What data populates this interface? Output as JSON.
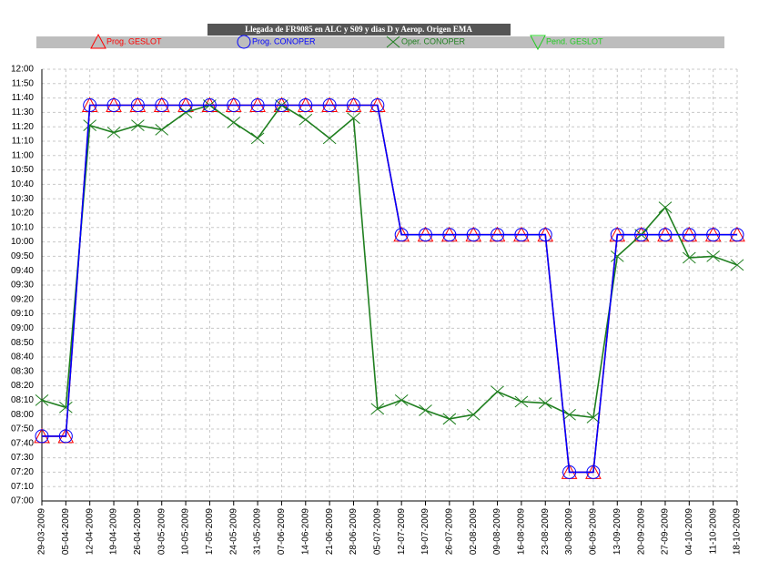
{
  "chart_data": {
    "type": "line",
    "title": "Llegada de FR9085 en ALC y S09 y dias D y Aerop. Origen EMA",
    "categories": [
      "29-03-2009",
      "05-04-2009",
      "12-04-2009",
      "19-04-2009",
      "26-04-2009",
      "03-05-2009",
      "10-05-2009",
      "17-05-2009",
      "24-05-2009",
      "31-05-2009",
      "07-06-2009",
      "14-06-2009",
      "21-06-2009",
      "28-06-2009",
      "05-07-2009",
      "12-07-2009",
      "19-07-2009",
      "26-07-2009",
      "02-08-2009",
      "09-08-2009",
      "16-08-2009",
      "23-08-2009",
      "30-08-2009",
      "06-09-2009",
      "13-09-2009",
      "20-09-2009",
      "27-09-2009",
      "04-10-2009",
      "11-10-2009",
      "18-10-2009"
    ],
    "series": [
      {
        "name": "Prog. GESLOT",
        "color": "#ff0000",
        "marker": "triangle-up",
        "values": [
          465,
          465,
          695,
          695,
          695,
          695,
          695,
          695,
          695,
          695,
          695,
          695,
          695,
          695,
          695,
          605,
          605,
          605,
          605,
          605,
          605,
          605,
          440,
          440,
          605,
          605,
          605,
          605,
          605,
          605
        ]
      },
      {
        "name": "Prog. CONOPER",
        "color": "#0000ff",
        "marker": "circle",
        "values": [
          465,
          465,
          695,
          695,
          695,
          695,
          695,
          695,
          695,
          695,
          695,
          695,
          695,
          695,
          695,
          605,
          605,
          605,
          605,
          605,
          605,
          605,
          440,
          440,
          605,
          605,
          605,
          605,
          605,
          605
        ]
      },
      {
        "name": "Oper. CONOPER",
        "color": "#1f7f1f",
        "marker": "x",
        "values": [
          490,
          485,
          681,
          676,
          681,
          678,
          690,
          695,
          683,
          672,
          695,
          685,
          672,
          686,
          484,
          490,
          483,
          477,
          480,
          496,
          489,
          488,
          480,
          478,
          590,
          605,
          624,
          589,
          590,
          584
        ]
      },
      {
        "name": "Pend. GESLOT",
        "color": "#22cc22",
        "marker": "triangle-down",
        "values": [
          null,
          null,
          null,
          null,
          null,
          null,
          null,
          null,
          null,
          null,
          null,
          null,
          null,
          null,
          null,
          null,
          null,
          null,
          null,
          null,
          null,
          null,
          null,
          null,
          null,
          null,
          null,
          null,
          null,
          null
        ]
      }
    ],
    "ylim": [
      420,
      720
    ],
    "yticks": [
      {
        "value": 420,
        "label": "07:00"
      },
      {
        "value": 430,
        "label": "07:10"
      },
      {
        "value": 440,
        "label": "07:20"
      },
      {
        "value": 450,
        "label": "07:30"
      },
      {
        "value": 460,
        "label": "07:40"
      },
      {
        "value": 470,
        "label": "07:50"
      },
      {
        "value": 480,
        "label": "08:00"
      },
      {
        "value": 490,
        "label": "08:10"
      },
      {
        "value": 500,
        "label": "08:20"
      },
      {
        "value": 510,
        "label": "08:30"
      },
      {
        "value": 520,
        "label": "08:40"
      },
      {
        "value": 530,
        "label": "08:50"
      },
      {
        "value": 540,
        "label": "09:00"
      },
      {
        "value": 550,
        "label": "09:10"
      },
      {
        "value": 560,
        "label": "09:20"
      },
      {
        "value": 570,
        "label": "09:30"
      },
      {
        "value": 580,
        "label": "09:40"
      },
      {
        "value": 590,
        "label": "09:50"
      },
      {
        "value": 600,
        "label": "10:00"
      },
      {
        "value": 610,
        "label": "10:10"
      },
      {
        "value": 620,
        "label": "10:20"
      },
      {
        "value": 630,
        "label": "10:30"
      },
      {
        "value": 640,
        "label": "10:40"
      },
      {
        "value": 650,
        "label": "10:50"
      },
      {
        "value": 660,
        "label": "11:00"
      },
      {
        "value": 670,
        "label": "11:10"
      },
      {
        "value": 680,
        "label": "11:20"
      },
      {
        "value": 690,
        "label": "11:30"
      },
      {
        "value": 700,
        "label": "11:40"
      },
      {
        "value": 710,
        "label": "11:50"
      },
      {
        "value": 720,
        "label": "12:00"
      }
    ],
    "grid": true
  }
}
